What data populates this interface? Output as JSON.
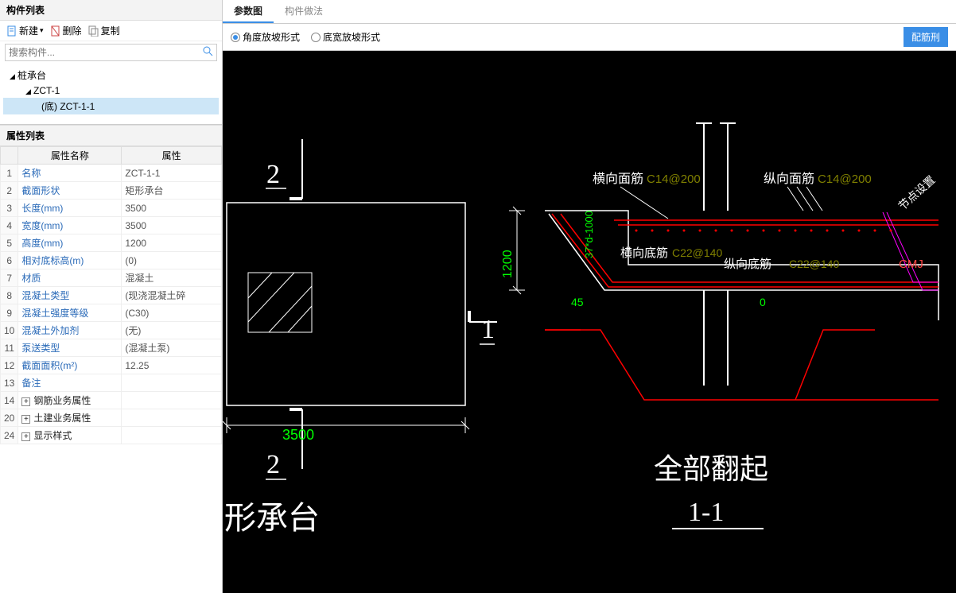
{
  "left": {
    "title": "构件列表",
    "toolbar": {
      "new": "新建",
      "delete": "删除",
      "copy": "复制"
    },
    "search_placeholder": "搜索构件...",
    "tree": {
      "root": "桩承台",
      "child1": "ZCT-1",
      "child2": "(底) ZCT-1-1"
    },
    "props_title": "属性列表",
    "props_header_name": "属性名称",
    "props_header_value": "属性",
    "rows": [
      {
        "idx": "1",
        "name": "名称",
        "value": "ZCT-1-1",
        "link": true
      },
      {
        "idx": "2",
        "name": "截面形状",
        "value": "矩形承台",
        "link": true
      },
      {
        "idx": "3",
        "name": "长度(mm)",
        "value": "3500",
        "link": true
      },
      {
        "idx": "4",
        "name": "宽度(mm)",
        "value": "3500",
        "link": true
      },
      {
        "idx": "5",
        "name": "高度(mm)",
        "value": "1200",
        "link": true
      },
      {
        "idx": "6",
        "name": "相对底标高(m)",
        "value": "(0)",
        "link": true
      },
      {
        "idx": "7",
        "name": "材质",
        "value": "混凝土",
        "link": true
      },
      {
        "idx": "8",
        "name": "混凝土类型",
        "value": "(现浇混凝土碎",
        "link": true
      },
      {
        "idx": "9",
        "name": "混凝土强度等级",
        "value": "(C30)",
        "link": true
      },
      {
        "idx": "10",
        "name": "混凝土外加剂",
        "value": "(无)",
        "link": true
      },
      {
        "idx": "11",
        "name": "泵送类型",
        "value": "(混凝土泵)",
        "link": true
      },
      {
        "idx": "12",
        "name": "截面面积(m²)",
        "value": "12.25",
        "link": true
      },
      {
        "idx": "13",
        "name": "备注",
        "value": "",
        "link": true
      },
      {
        "idx": "14",
        "name": "钢筋业务属性",
        "value": "",
        "link": false,
        "expand": true
      },
      {
        "idx": "20",
        "name": "土建业务属性",
        "value": "",
        "link": false,
        "expand": true
      },
      {
        "idx": "24",
        "name": "显示样式",
        "value": "",
        "link": false,
        "expand": true
      }
    ]
  },
  "right": {
    "tabs": {
      "t1": "参数图",
      "t2": "构件做法"
    },
    "opts": {
      "o1": "角度放坡形式",
      "o2": "底宽放坡形式"
    },
    "btn": "配筋刑",
    "diagram": {
      "num2a": "2",
      "num2b": "2",
      "num1": "1",
      "dim_3500": "3500",
      "dim_1200": "1200",
      "dim_37d": "37*d-1000",
      "dim_45": "45",
      "dim_0": "0",
      "label_hxmj": "横向面筋",
      "val_c14_200": "C14@200",
      "label_zxmj": "纵向面筋",
      "val_c14_200b": "C14@200",
      "label_hxdj": "横向底筋",
      "val_c22_140": "C22@140",
      "label_zxdj": "纵向底筋",
      "val_c22_140b": "C22@140",
      "label_jdsz": "节点设置",
      "label_cmj": "CMJ",
      "title_footer": "形承台",
      "title_right1": "全部翻起",
      "title_right2": "1-1"
    }
  }
}
